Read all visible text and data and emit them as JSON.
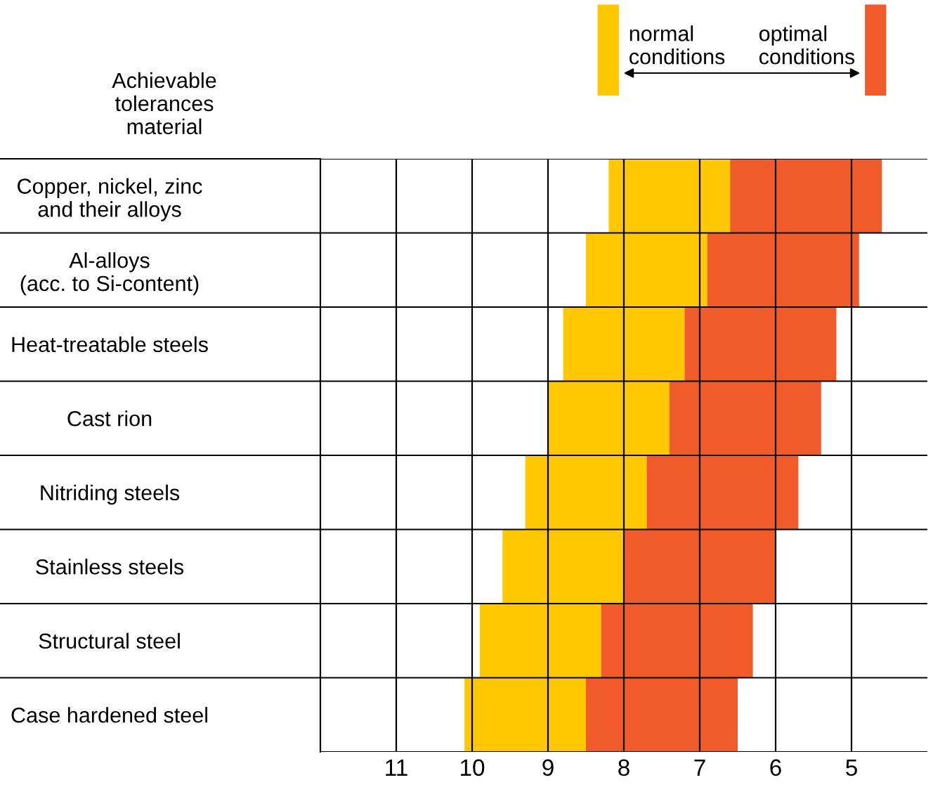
{
  "chart_data": {
    "type": "bar",
    "orientation": "horizontal",
    "ylabel": "Achievable\ntolerances\nmaterial",
    "categories": [
      "Copper, nickel, zinc\nand their alloys",
      "Al-alloys\n(acc. to Si-content)",
      "Heat-treatable steels",
      "Cast rion",
      "Nitriding steels",
      "Stainless steels",
      "Structural steel",
      "Case hardened steel"
    ],
    "series": [
      {
        "name": "normal\nconditions",
        "color": "#ffc800",
        "base": [
          6.6,
          6.9,
          7.2,
          7.4,
          7.7,
          8.0,
          8.3,
          8.5
        ],
        "values": [
          1.6,
          1.6,
          1.6,
          1.6,
          1.6,
          1.6,
          1.6,
          1.6
        ]
      },
      {
        "name": "optimal\nconditions",
        "color": "#f15a29",
        "base": [
          4.6,
          4.9,
          5.2,
          5.4,
          5.7,
          6.0,
          6.3,
          6.5
        ],
        "values": [
          2.0,
          2.0,
          2.0,
          2.0,
          2.0,
          2.0,
          2.0,
          2.0
        ]
      }
    ],
    "xlim": [
      12,
      4
    ],
    "xticks": [
      11,
      10,
      9,
      8,
      7,
      6,
      5
    ],
    "grid": true,
    "legend": "top"
  }
}
